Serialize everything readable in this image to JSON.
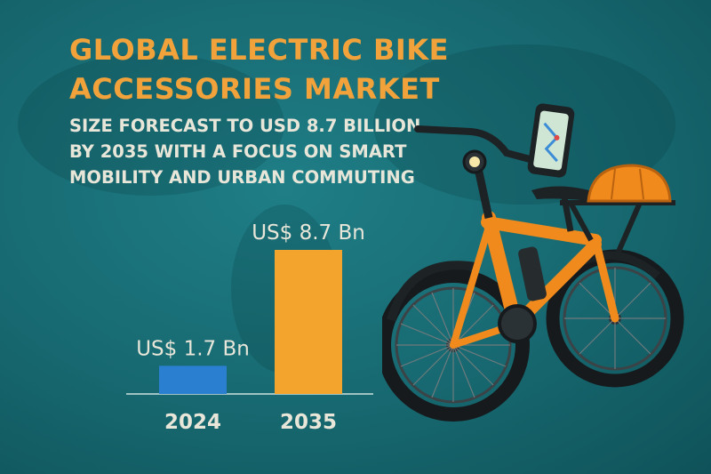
{
  "header": {
    "title_line1": "GLOBAL ELECTRIC BIKE",
    "title_line2": "ACCESSORIES MARKET",
    "subtitle_line1": "SIZE FORECAST TO USD 8.7 BILLION",
    "subtitle_line2": "BY 2035 WITH A FOCUS ON SMART",
    "subtitle_line3": "MOBILITY AND URBAN COMMUTING"
  },
  "colors": {
    "background": "#176870",
    "title": "#f2a23a",
    "text": "#e8e6d9",
    "bar_2024": "#2b7fd0",
    "bar_2035": "#f2a42c"
  },
  "illustration": {
    "icon": "electric-bike-illustration",
    "items": [
      "smartphone-mount",
      "helmet",
      "headlight",
      "rear-rack",
      "battery"
    ]
  },
  "chart_data": {
    "type": "bar",
    "title": "",
    "xlabel": "",
    "ylabel": "",
    "categories": [
      "2024",
      "2035"
    ],
    "values": [
      1.7,
      8.7
    ],
    "data_labels": [
      "US$ 1.7 Bn",
      "US$ 8.7 Bn"
    ],
    "colors": [
      "#2b7fd0",
      "#f2a42c"
    ],
    "ylim": [
      0,
      8.7
    ],
    "grid": false,
    "legend": "none"
  }
}
